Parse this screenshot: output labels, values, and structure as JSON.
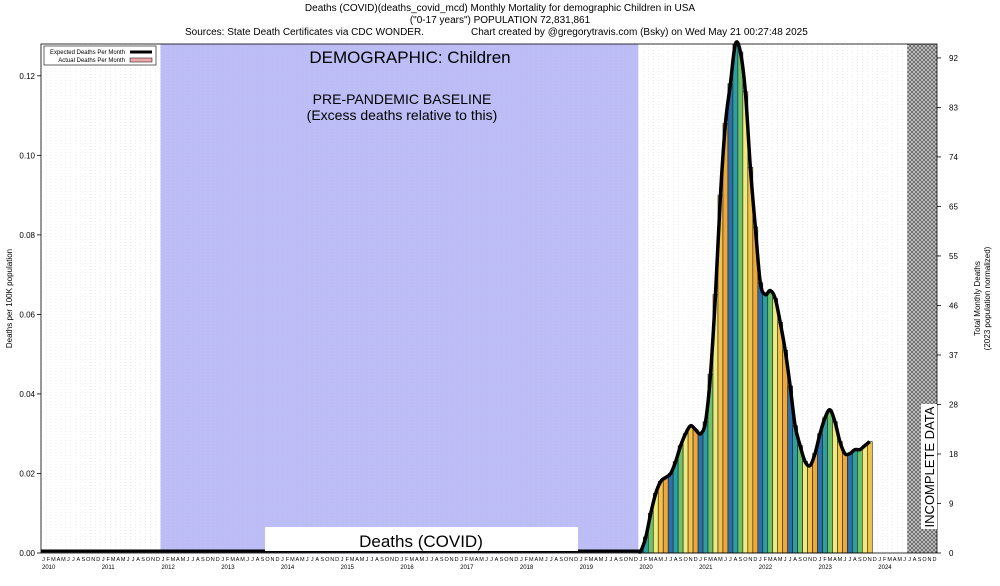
{
  "header": {
    "line1": "Deaths (COVID)(deaths_covid_mcd) Monthly Mortality for demographic Children in USA",
    "line2": "(\"0-17 years\") POPULATION 72,831,861",
    "sources": "Sources: State Death Certificates via CDC WONDER.",
    "credit": "Chart created by @gregorytravis.com (Bsky) on Wed May 21 00:27:48 2025"
  },
  "colors": {
    "baseline_band": "#bcbcf7",
    "bar_palette": [
      "#2e6fa8",
      "#2aa0a0",
      "#6cc26a",
      "#f0ea7a",
      "#f3c24a",
      "#eda73a"
    ],
    "curve": "#000000",
    "legend_actual": "#f0a8a8"
  },
  "chart_data": {
    "type": "bar",
    "title": "DEMOGRAPHIC: Children",
    "ylabel": "Deaths per 100K population",
    "y2label": [
      "Total Monthly Deaths",
      "(2023 population normalized)"
    ],
    "ylim": [
      0,
      0.128
    ],
    "yticks": [
      "0.00",
      "0.02",
      "0.04",
      "0.06",
      "0.08",
      "0.10",
      "0.12"
    ],
    "y2ticks": [
      "0",
      "9",
      "18",
      "28",
      "37",
      "46",
      "55",
      "65",
      "74",
      "83",
      "92"
    ],
    "years": [
      "2010",
      "2011",
      "2012",
      "2013",
      "2014",
      "2015",
      "2016",
      "2017",
      "2018",
      "2019",
      "2020",
      "2021",
      "2022",
      "2023",
      "2024"
    ],
    "month_letters": [
      "J",
      "F",
      "M",
      "A",
      "M",
      "J",
      "J",
      "A",
      "S",
      "O",
      "N",
      "D"
    ],
    "legend": [
      "Expected Deaths Per Month",
      "Actual Deaths Per Month"
    ],
    "baseline_label": [
      "PRE-PANDEMIC BASELINE",
      "(Excess deaths relative to this)"
    ],
    "baseline_years": [
      "2012",
      "2019"
    ],
    "series_label": "Deaths (COVID)",
    "incomplete_label": "INCOMPLETE DATA",
    "incomplete_from": "2024-07",
    "start_month": "2020-01",
    "values": [
      0.0005,
      0.004,
      0.01,
      0.015,
      0.018,
      0.019,
      0.02,
      0.023,
      0.027,
      0.03,
      0.032,
      0.031,
      0.03,
      0.033,
      0.045,
      0.065,
      0.09,
      0.108,
      0.118,
      0.128,
      0.126,
      0.116,
      0.097,
      0.082,
      0.068,
      0.065,
      0.066,
      0.064,
      0.058,
      0.051,
      0.042,
      0.032,
      0.027,
      0.023,
      0.022,
      0.025,
      0.03,
      0.034,
      0.036,
      0.033,
      0.028,
      0.025,
      0.025,
      0.026,
      0.026,
      0.027,
      0.028
    ]
  }
}
